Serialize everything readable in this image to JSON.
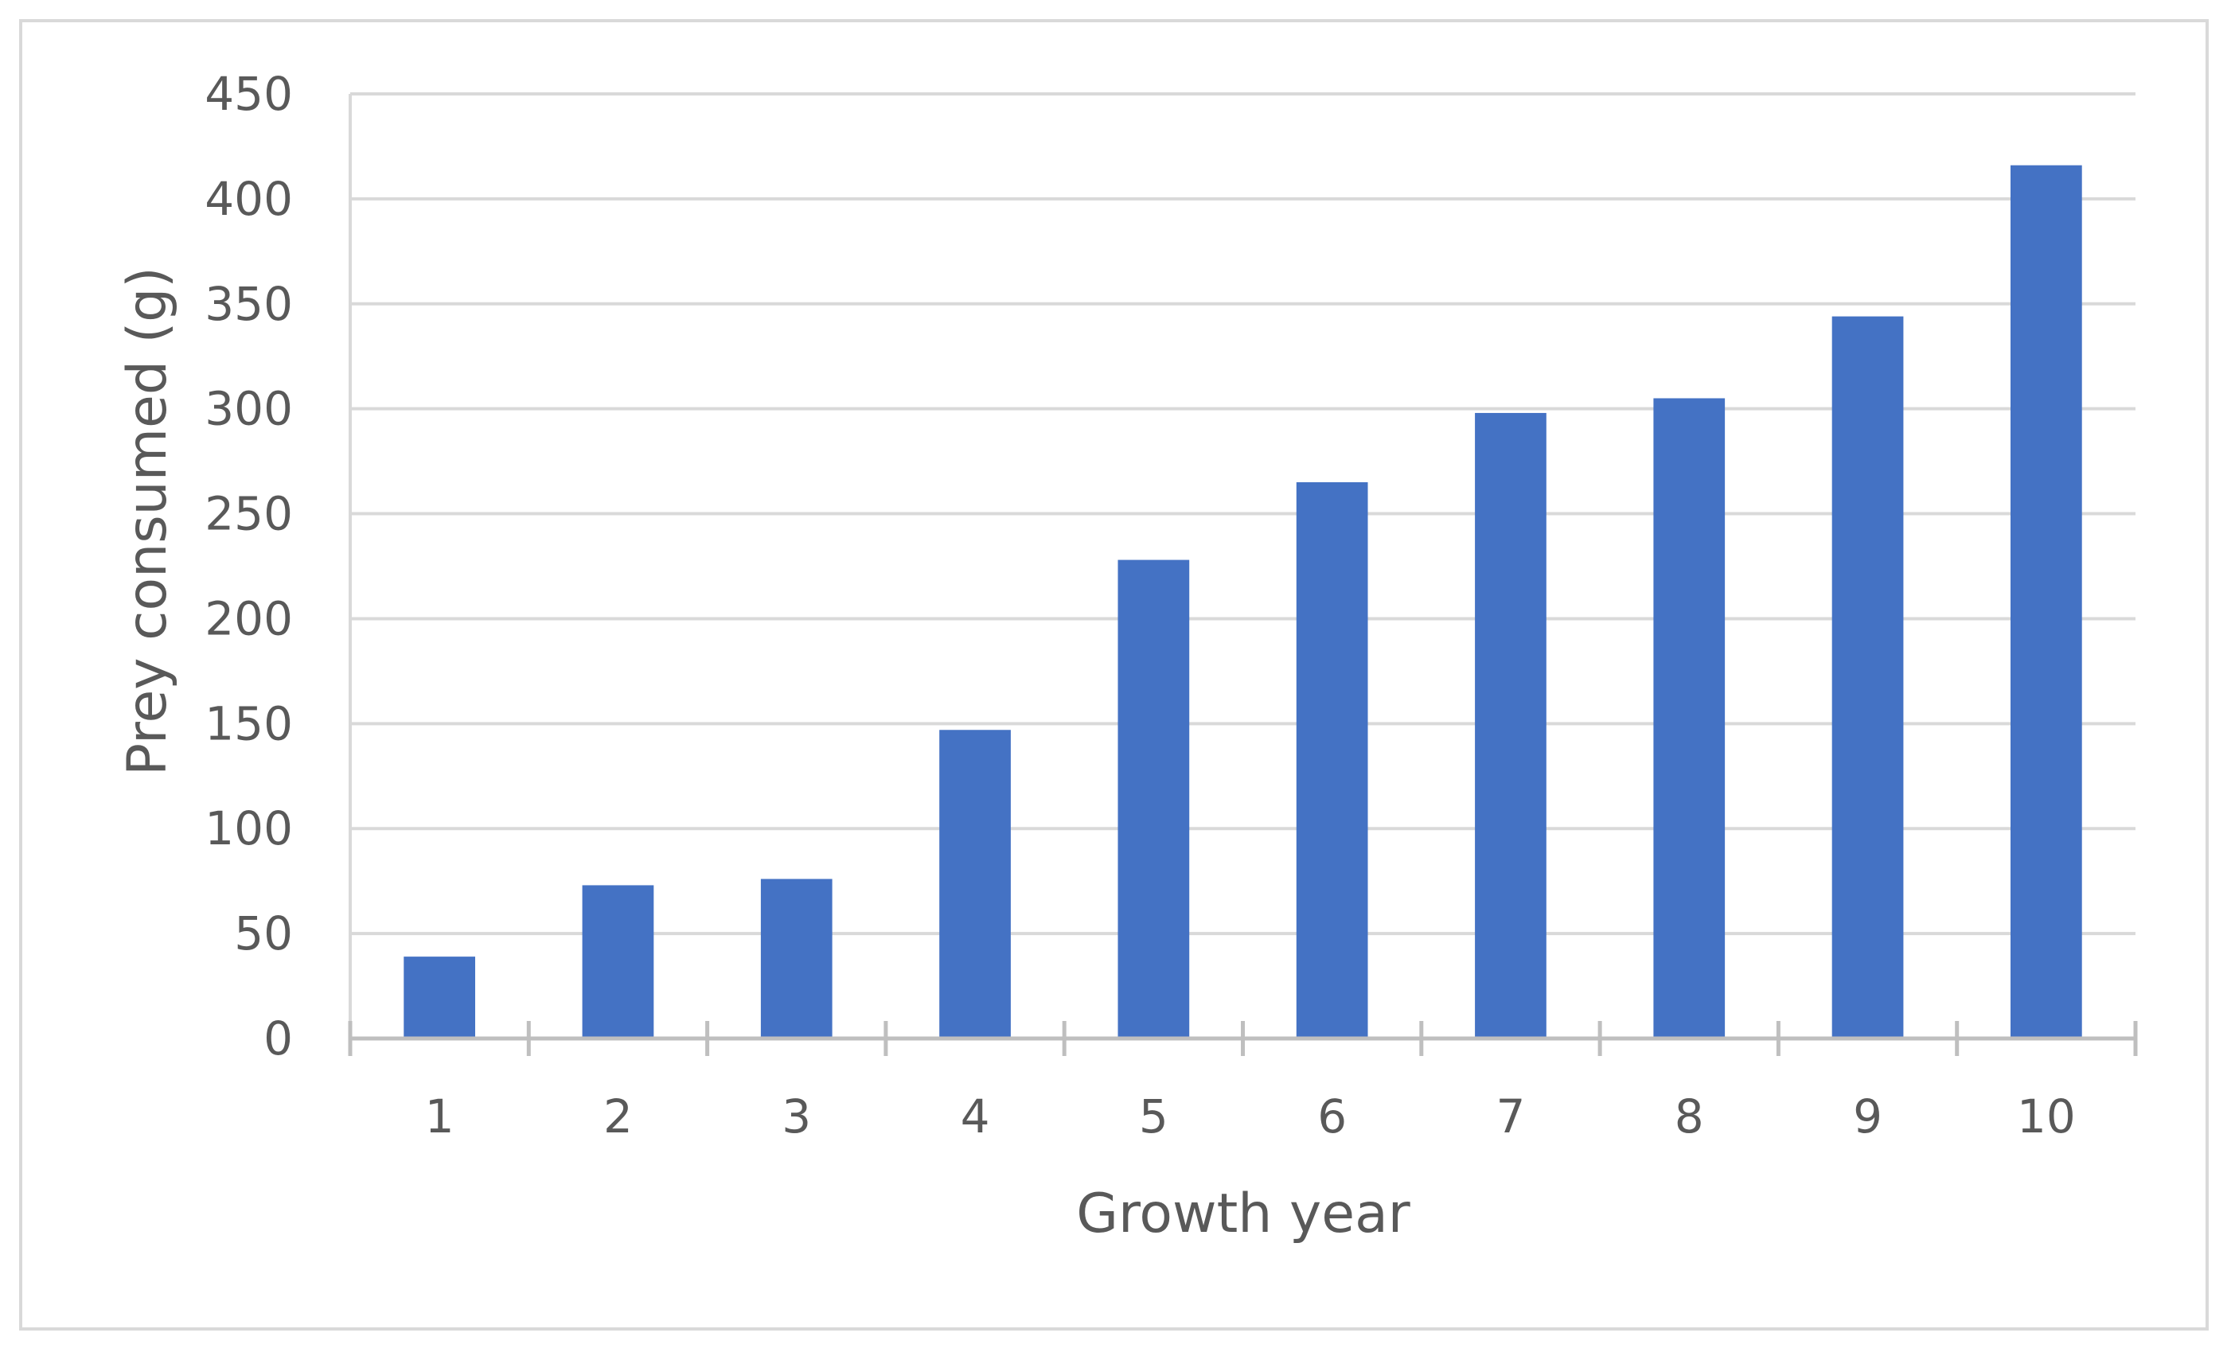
{
  "chart_data": {
    "type": "bar",
    "title": "",
    "xlabel": "Growth year",
    "ylabel": "Prey consumed (g)",
    "categories": [
      "1",
      "2",
      "3",
      "4",
      "5",
      "6",
      "7",
      "8",
      "9",
      "10"
    ],
    "values": [
      39,
      73,
      76,
      147,
      228,
      265,
      298,
      305,
      344,
      416
    ],
    "ylim": [
      0,
      450
    ],
    "yticks": [
      0,
      50,
      100,
      150,
      200,
      250,
      300,
      350,
      400,
      450
    ],
    "grid": true,
    "legend": "none",
    "colors": {
      "bar": "#4472c4",
      "grid": "#d9d9d9",
      "axis": "#bfbfbf",
      "text": "#595959"
    }
  }
}
